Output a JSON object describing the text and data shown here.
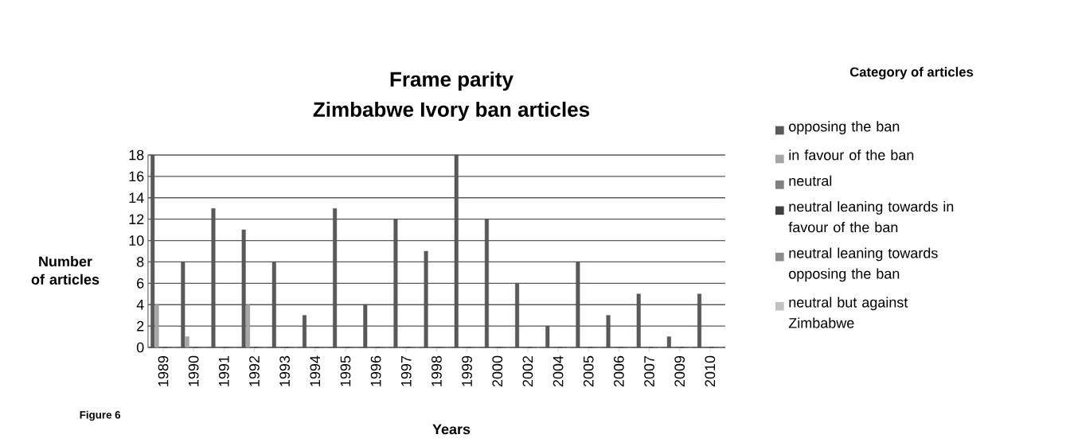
{
  "chart_data": {
    "type": "bar",
    "title": "Frame parity",
    "subtitle": "Zimbabwe Ivory ban articles",
    "xlabel": "Years",
    "ylabel": "Number of articles",
    "legend_title": "Category of articles",
    "annotations": [
      "Figure 6"
    ],
    "categories": [
      "1989",
      "1990",
      "1991",
      "1992",
      "1993",
      "1994",
      "1995",
      "1996",
      "1997",
      "1998",
      "1999",
      "2000",
      "2002",
      "2004",
      "2005",
      "2006",
      "2007",
      "2009",
      "2010"
    ],
    "series": [
      {
        "name": "opposing the ban",
        "color": "#595959",
        "values": [
          18,
          8,
          13,
          11,
          8,
          3,
          13,
          4,
          12,
          9,
          18,
          12,
          6,
          2,
          8,
          3,
          5,
          1,
          5
        ]
      },
      {
        "name": "in favour of the ban",
        "color": "#a6a6a6",
        "values": [
          4,
          1,
          0,
          4,
          0,
          0,
          0,
          0,
          0,
          0,
          0,
          0,
          0,
          0,
          0,
          0,
          0,
          0,
          0
        ]
      },
      {
        "name": "neutral",
        "color": "#7f7f7f",
        "values": [
          0,
          0,
          0,
          0,
          0,
          0,
          0,
          0,
          0,
          0,
          0,
          0,
          0,
          0,
          0,
          0,
          0,
          0,
          0
        ]
      },
      {
        "name": "neutral leaning towards in favour of the ban",
        "color": "#404040",
        "values": [
          0,
          0,
          0,
          0,
          0,
          0,
          0,
          0,
          0,
          0,
          0,
          0,
          0,
          0,
          0,
          0,
          0,
          0,
          0
        ]
      },
      {
        "name": "neutral leaning towards opposing the ban",
        "color": "#8c8c8c",
        "values": [
          0,
          0,
          0,
          0,
          0,
          0,
          0,
          0,
          0,
          0,
          0,
          0,
          0,
          0,
          0,
          0,
          0,
          0,
          0
        ]
      },
      {
        "name": "neutral but against Zimbabwe",
        "color": "#c0c0c0",
        "values": [
          0,
          0,
          0,
          0,
          0,
          0,
          0,
          0,
          0,
          0,
          0,
          0,
          0,
          0,
          0,
          0,
          0,
          0,
          0
        ]
      }
    ],
    "ylim": [
      0,
      18
    ],
    "yticks": [
      0,
      2,
      4,
      6,
      8,
      10,
      12,
      14,
      16,
      18
    ],
    "grid": "y",
    "legend": "right"
  }
}
